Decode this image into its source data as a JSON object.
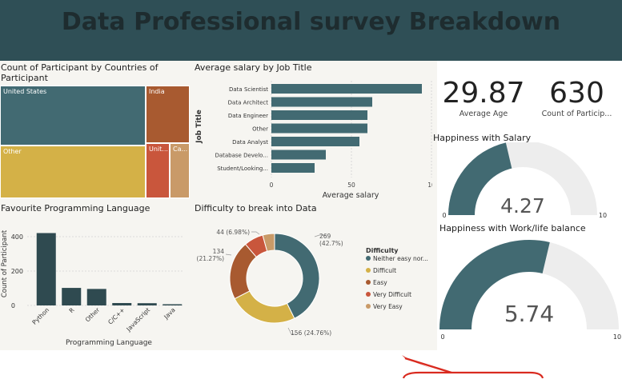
{
  "header": {
    "title": "Data Professional survey Breakdown"
  },
  "treemap": {
    "title": "Count of Participant by Countries of Participant",
    "cells": [
      {
        "label": "United States",
        "color": "#426a72"
      },
      {
        "label": "India",
        "color": "#a85a30"
      },
      {
        "label": "Other",
        "color": "#d4b147"
      },
      {
        "label": "Unit...",
        "color": "#c9563c"
      },
      {
        "label": "Ca...",
        "color": "#c99a68"
      }
    ]
  },
  "salary_chart": {
    "title": "Average salary by Job Title",
    "ylabel": "Job Title",
    "xlabel": "Average salary",
    "tick_labels": [
      "0",
      "50",
      "10"
    ]
  },
  "kpis": {
    "avg_age_value": "29.87",
    "avg_age_label": "Average Age",
    "count_value": "630",
    "count_label": "Count of Particip..."
  },
  "gauge_salary": {
    "title": "Happiness with Salary",
    "value_label": "4.27",
    "min_label": "0",
    "max_label": "10",
    "value": 4.27,
    "max": 10,
    "fill_color": "#426a72",
    "track_color": "#ededed"
  },
  "gauge_balance": {
    "title": "Happiness with Work/life balance",
    "value_label": "5.74",
    "min_label": "0",
    "max_label": "10",
    "value": 5.74,
    "max": 10,
    "fill_color": "#426a72",
    "track_color": "#ededed"
  },
  "language_chart": {
    "title": "Favourite Programming Language",
    "ylabel": "Count of Participant",
    "xlabel": "Programming Language",
    "y_ticks": [
      "0",
      "200",
      "400"
    ]
  },
  "difficulty_chart": {
    "title": "Difficulty to break into Data",
    "legend_title": "Difficulty",
    "slice_labels": [
      {
        "count": "269",
        "pct": "(42.7%)"
      },
      {
        "count": "156 (24.76%)",
        "pct": ""
      },
      {
        "count": "134",
        "pct": "(21.27%)"
      },
      {
        "count": "44 (6.98%)",
        "pct": ""
      }
    ]
  },
  "chart_data": [
    {
      "type": "bar",
      "orientation": "horizontal",
      "title": "Average salary by Job Title",
      "xlabel": "Average salary",
      "ylabel": "Job Title",
      "categories": [
        "Data Scientist",
        "Data Architect",
        "Data Engineer",
        "Other",
        "Data Analyst",
        "Database Develo...",
        "Student/Looking..."
      ],
      "values": [
        94,
        63,
        60,
        60,
        55,
        34,
        27
      ],
      "xlim": [
        0,
        100
      ],
      "color": "#426a72"
    },
    {
      "type": "bar",
      "title": "Favourite Programming Language",
      "xlabel": "Programming Language",
      "ylabel": "Count of Participant",
      "categories": [
        "Python",
        "R",
        "Other",
        "C/C++",
        "JavaScript",
        "Java"
      ],
      "values": [
        421,
        102,
        96,
        14,
        13,
        6
      ],
      "ylim": [
        0,
        450
      ],
      "color": "#2f4a50"
    },
    {
      "type": "pie",
      "donut": true,
      "title": "Difficulty to break into Data",
      "legend_title": "Difficulty",
      "categories": [
        "Neither easy nor...",
        "Difficult",
        "Easy",
        "Very Difficult",
        "Very Easy"
      ],
      "values": [
        269,
        156,
        134,
        44,
        27
      ],
      "colors": [
        "#426a72",
        "#d4b147",
        "#a85a30",
        "#c9563c",
        "#c99a68"
      ]
    }
  ]
}
